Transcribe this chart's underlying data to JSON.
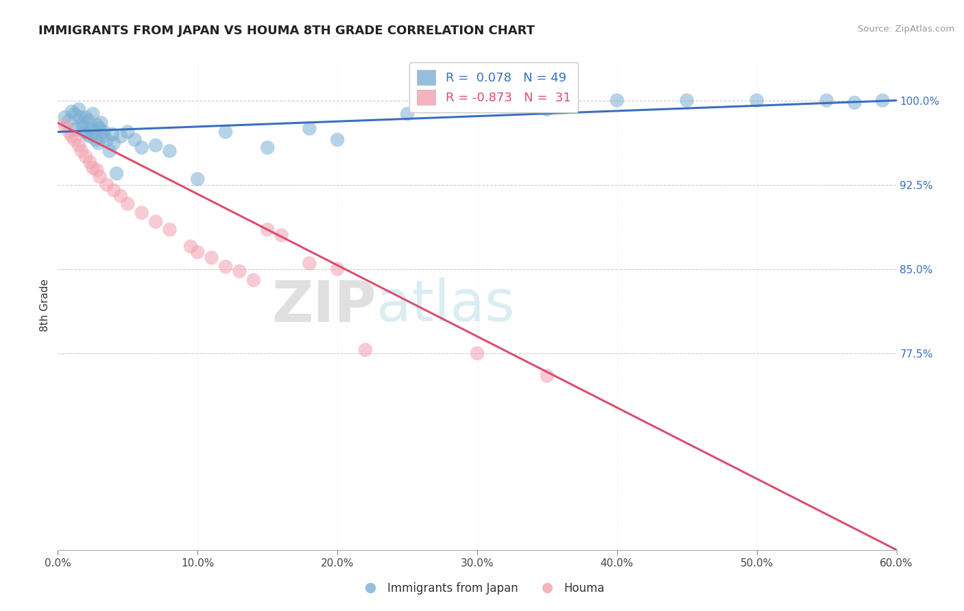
{
  "title": "IMMIGRANTS FROM JAPAN VS HOUMA 8TH GRADE CORRELATION CHART",
  "source": "Source: ZipAtlas.com",
  "ylabel": "8th Grade",
  "x_tick_labels": [
    "0.0%",
    "10.0%",
    "20.0%",
    "30.0%",
    "40.0%",
    "50.0%",
    "60.0%"
  ],
  "x_tick_values": [
    0.0,
    10.0,
    20.0,
    30.0,
    40.0,
    50.0,
    60.0
  ],
  "y_tick_labels": [
    "100.0%",
    "92.5%",
    "85.0%",
    "77.5%"
  ],
  "y_tick_values": [
    100.0,
    92.5,
    85.0,
    77.5
  ],
  "xlim": [
    0.0,
    60.0
  ],
  "ylim": [
    60.0,
    103.5
  ],
  "legend_blue_r": "0.078",
  "legend_blue_n": "49",
  "legend_pink_r": "-0.873",
  "legend_pink_n": "31",
  "legend_label_blue": "Immigrants from Japan",
  "legend_label_pink": "Houma",
  "blue_color": "#7BAFD4",
  "pink_color": "#F4A0B0",
  "blue_line_color": "#3B6EBF",
  "pink_line_color": "#D94F6E",
  "watermark_zip": "ZIP",
  "watermark_atlas": "atlas",
  "blue_scatter_x": [
    0.5,
    0.8,
    1.0,
    1.2,
    1.3,
    1.5,
    1.6,
    1.7,
    1.8,
    1.9,
    2.0,
    2.1,
    2.2,
    2.3,
    2.4,
    2.5,
    2.6,
    2.7,
    2.8,
    2.9,
    3.0,
    3.1,
    3.2,
    3.3,
    3.5,
    3.7,
    3.9,
    4.0,
    4.2,
    4.5,
    5.0,
    5.5,
    6.0,
    7.0,
    8.0,
    10.0,
    12.0,
    15.0,
    18.0,
    20.0,
    25.0,
    30.0,
    35.0,
    40.0,
    45.0,
    50.0,
    55.0,
    57.0,
    59.0
  ],
  "blue_scatter_y": [
    98.5,
    98.2,
    99.0,
    98.8,
    97.5,
    99.2,
    98.5,
    97.8,
    98.0,
    97.2,
    98.5,
    97.0,
    98.2,
    96.8,
    97.5,
    98.8,
    97.2,
    96.5,
    97.8,
    96.2,
    97.5,
    98.0,
    96.8,
    97.2,
    96.5,
    95.5,
    97.0,
    96.2,
    93.5,
    96.8,
    97.2,
    96.5,
    95.8,
    96.0,
    95.5,
    93.0,
    97.2,
    95.8,
    97.5,
    96.5,
    98.8,
    99.5,
    99.2,
    100.0,
    100.0,
    100.0,
    100.0,
    99.8,
    100.0
  ],
  "pink_scatter_x": [
    0.5,
    0.8,
    1.0,
    1.2,
    1.5,
    1.7,
    2.0,
    2.3,
    2.5,
    2.8,
    3.0,
    3.5,
    4.0,
    4.5,
    5.0,
    6.0,
    7.0,
    8.0,
    9.5,
    10.0,
    11.0,
    12.0,
    13.0,
    14.0,
    15.0,
    16.0,
    18.0,
    20.0,
    22.0,
    30.0,
    35.0
  ],
  "pink_scatter_y": [
    97.8,
    97.2,
    96.8,
    96.5,
    96.0,
    95.5,
    95.0,
    94.5,
    94.0,
    93.8,
    93.2,
    92.5,
    92.0,
    91.5,
    90.8,
    90.0,
    89.2,
    88.5,
    87.0,
    86.5,
    86.0,
    85.2,
    84.8,
    84.0,
    88.5,
    88.0,
    85.5,
    85.0,
    77.8,
    77.5,
    75.5
  ]
}
